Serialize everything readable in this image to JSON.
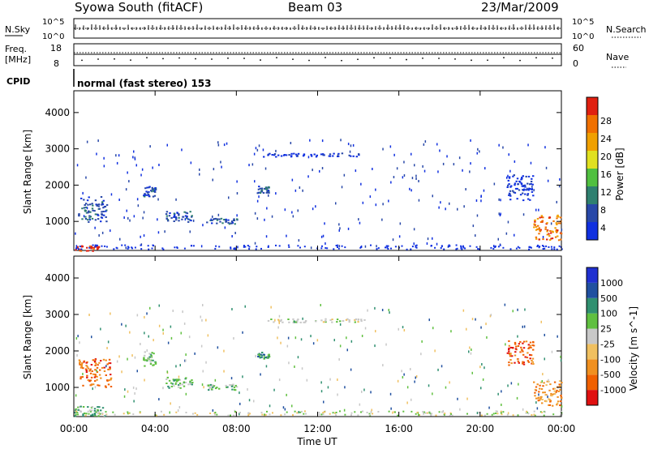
{
  "header": {
    "station": "Syowa South (fitACF)",
    "beam": "Beam 03",
    "date": "23/Mar/2009"
  },
  "status_panels": {
    "nsky_label": "N.Sky",
    "nsky_ticks": [
      "10^5",
      "10^0"
    ],
    "nsearch_label": "N.Search",
    "nsearch_ticks": [
      "10^5",
      "10^0"
    ],
    "freq_label_1": "Freq.",
    "freq_label_2": "[MHz]",
    "freq_ticks": [
      "18",
      "8"
    ],
    "nave_label": "Nave",
    "nave_ticks": [
      "60",
      "0"
    ],
    "cpid_label": "CPID",
    "cpid_text": "normal (fast stereo) 153"
  },
  "colors": {
    "background": "#ffffff",
    "axes": "#000000"
  },
  "chart_data": [
    {
      "type": "heatmap",
      "parameter": "Power",
      "xlabel": "",
      "ylabel": "Slant Range [km]",
      "x_range_hours": [
        0,
        24
      ],
      "ylim": [
        200,
        4600
      ],
      "yticks": [
        1000,
        2000,
        3000,
        4000
      ],
      "colorbar_label": "Power [dB]",
      "colorbar_ticks": [
        "4",
        "8",
        "12",
        "16",
        "20",
        "24",
        "28"
      ],
      "colorbar_colors": [
        "#1030e0",
        "#2848a8",
        "#2f8070",
        "#50c040",
        "#e0e020",
        "#f0a000",
        "#f07000",
        "#e02010"
      ],
      "scatter_regions": [
        {
          "x": [
            0.2,
            1.6
          ],
          "y": [
            1000,
            1700
          ],
          "level": 1
        },
        {
          "x": [
            0.0,
            1.2
          ],
          "y": [
            200,
            350
          ],
          "level": 7
        },
        {
          "x": [
            3.4,
            4.0
          ],
          "y": [
            1700,
            2000
          ],
          "level": 1
        },
        {
          "x": [
            4.5,
            5.8
          ],
          "y": [
            1000,
            1300
          ],
          "level": 1
        },
        {
          "x": [
            6.5,
            8.0
          ],
          "y": [
            950,
            1100
          ],
          "level": 1
        },
        {
          "x": [
            9.0,
            9.6
          ],
          "y": [
            1800,
            2000
          ],
          "level": 1
        },
        {
          "x": [
            9.3,
            14.3
          ],
          "y": [
            2800,
            2900
          ],
          "level": 0
        },
        {
          "x": [
            21.3,
            22.6
          ],
          "y": [
            1600,
            2300
          ],
          "level": 0
        },
        {
          "x": [
            22.6,
            24.0
          ],
          "y": [
            500,
            1200
          ],
          "level": 6
        }
      ]
    },
    {
      "type": "heatmap",
      "parameter": "Velocity",
      "xlabel": "Time UT",
      "ylabel": "Slant Range [km]",
      "x_range_hours": [
        0,
        24
      ],
      "ylim": [
        200,
        4600
      ],
      "yticks": [
        1000,
        2000,
        3000,
        4000
      ],
      "xticks": [
        "00:00",
        "04:00",
        "08:00",
        "12:00",
        "16:00",
        "20:00",
        "00:00"
      ],
      "colorbar_label": "Velocity [m s^-1]",
      "colorbar_ticks": [
        "-1000",
        "-500",
        "-100",
        "-25",
        "25",
        "100",
        "500",
        "1000"
      ],
      "colorbar_colors": [
        "#e01010",
        "#f06000",
        "#f09020",
        "#f0c060",
        "#c8c8c8",
        "#60c040",
        "#309070",
        "#2050a0",
        "#2030d0"
      ],
      "scatter_regions": [
        {
          "x": [
            0.2,
            1.8
          ],
          "y": [
            1000,
            1800
          ],
          "level": 1
        },
        {
          "x": [
            0.0,
            1.5
          ],
          "y": [
            200,
            500
          ],
          "level": 5
        },
        {
          "x": [
            3.4,
            4.0
          ],
          "y": [
            1600,
            2000
          ],
          "level": 5
        },
        {
          "x": [
            4.5,
            5.8
          ],
          "y": [
            1000,
            1300
          ],
          "level": 5
        },
        {
          "x": [
            6.5,
            8.0
          ],
          "y": [
            950,
            1100
          ],
          "level": 5
        },
        {
          "x": [
            9.0,
            9.6
          ],
          "y": [
            1800,
            2000
          ],
          "level": 6
        },
        {
          "x": [
            9.3,
            14.3
          ],
          "y": [
            2800,
            2900
          ],
          "level": 4
        },
        {
          "x": [
            21.3,
            22.6
          ],
          "y": [
            1600,
            2300
          ],
          "level": 1
        },
        {
          "x": [
            22.6,
            24.0
          ],
          "y": [
            500,
            1200
          ],
          "level": 2
        }
      ]
    }
  ]
}
